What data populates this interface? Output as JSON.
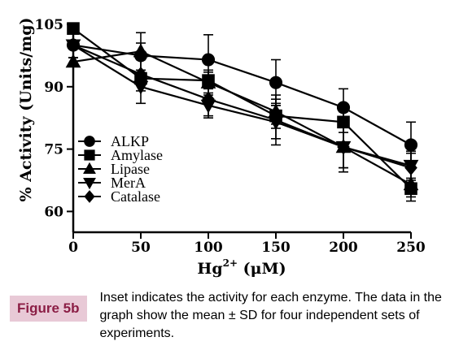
{
  "chart_data": {
    "type": "line",
    "title": "",
    "xlabel": "Hg",
    "xlabel_sup": "2+",
    "xlabel_unit": " (μM)",
    "ylabel": "% Activity (Units/mg)",
    "x": [
      0,
      50,
      100,
      150,
      200,
      250
    ],
    "xticks": [
      "0",
      "50",
      "100",
      "150",
      "200",
      "250"
    ],
    "yticks": [
      "60",
      "75",
      "90",
      "105"
    ],
    "yticks_values": [
      60,
      75,
      90,
      105
    ],
    "xlim": [
      0,
      250
    ],
    "ylim": [
      55,
      105
    ],
    "legend_position": "left-bottom",
    "grid": false,
    "series": [
      {
        "name": "ALKP",
        "marker": "circle",
        "values": [
          100,
          97.5,
          96.5,
          91,
          85,
          76
        ],
        "errors": [
          3,
          5.5,
          6,
          5.5,
          4.5,
          5.5
        ]
      },
      {
        "name": "Amylase",
        "marker": "square",
        "values": [
          104,
          92,
          91.5,
          83,
          81.5,
          65.5
        ],
        "errors": [
          0.5,
          1,
          2,
          3,
          2.5,
          2
        ]
      },
      {
        "name": "Lipase",
        "marker": "triangle-up",
        "values": [
          96,
          98.5,
          91,
          84,
          75.5,
          66.5
        ],
        "errors": [
          1,
          2,
          3,
          3,
          6,
          4
        ]
      },
      {
        "name": "MerA",
        "marker": "triangle-down",
        "values": [
          100,
          90,
          85.5,
          81.5,
          75.5,
          71
        ],
        "errors": [
          3,
          4,
          3,
          4,
          5,
          3
        ]
      },
      {
        "name": "Catalase",
        "marker": "diamond",
        "values": [
          100,
          93,
          87,
          82,
          75.5,
          70.5
        ],
        "errors": [
          3,
          4,
          4,
          6,
          5,
          4
        ]
      }
    ]
  },
  "caption": {
    "label": "Figure 5b",
    "text": "Inset indicates the activity for each enzyme. The data in the graph show the mean ± SD for four independent sets of experiments."
  }
}
